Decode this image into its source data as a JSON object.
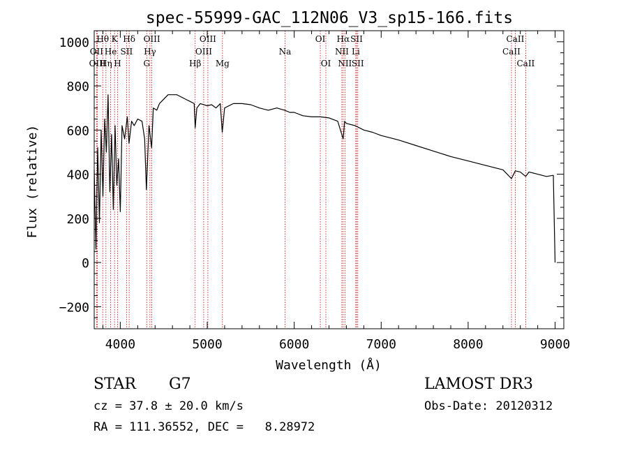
{
  "chart_data": {
    "type": "line",
    "title": "spec-55999-GAC_112N06_V3_sp15-166.fits",
    "xlabel": "Wavelength (Å)",
    "ylabel": "Flux (relative)",
    "xlim": [
      3700,
      9100
    ],
    "ylim": [
      -300,
      1050
    ],
    "xticks": [
      4000,
      5000,
      6000,
      7000,
      8000,
      9000
    ],
    "yticks": [
      -200,
      0,
      200,
      400,
      600,
      800,
      1000
    ],
    "x_tick_labels": [
      "4000",
      "5000",
      "6000",
      "7000",
      "8000",
      "9000"
    ],
    "y_tick_labels": [
      "−200",
      "0",
      "200",
      "400",
      "600",
      "800",
      "1000"
    ],
    "series": [
      {
        "name": "flux",
        "x": [
          3700,
          3720,
          3740,
          3760,
          3780,
          3800,
          3820,
          3840,
          3860,
          3880,
          3900,
          3920,
          3940,
          3960,
          3980,
          4000,
          4020,
          4050,
          4080,
          4100,
          4130,
          4160,
          4200,
          4250,
          4280,
          4300,
          4330,
          4360,
          4380,
          4420,
          4450,
          4500,
          4550,
          4600,
          4650,
          4700,
          4750,
          4800,
          4850,
          4861,
          4880,
          4920,
          5000,
          5050,
          5100,
          5150,
          5172,
          5200,
          5300,
          5400,
          5500,
          5600,
          5700,
          5800,
          5890,
          5950,
          6000,
          6100,
          6200,
          6300,
          6400,
          6500,
          6563,
          6580,
          6600,
          6700,
          6800,
          6900,
          7000,
          7200,
          7400,
          7600,
          7800,
          8000,
          8200,
          8400,
          8498,
          8542,
          8600,
          8662,
          8700,
          8800,
          8900,
          8980,
          9000,
          9000
        ],
        "y": [
          420,
          60,
          520,
          180,
          600,
          300,
          650,
          500,
          760,
          320,
          580,
          240,
          620,
          350,
          470,
          230,
          620,
          560,
          660,
          540,
          640,
          620,
          650,
          640,
          560,
          330,
          620,
          520,
          700,
          690,
          720,
          740,
          760,
          760,
          760,
          750,
          740,
          730,
          720,
          610,
          700,
          720,
          710,
          715,
          700,
          720,
          590,
          700,
          720,
          720,
          715,
          700,
          690,
          700,
          690,
          680,
          680,
          665,
          660,
          660,
          655,
          640,
          560,
          640,
          630,
          620,
          600,
          590,
          575,
          555,
          530,
          505,
          480,
          460,
          440,
          420,
          380,
          415,
          410,
          390,
          410,
          400,
          390,
          395,
          0,
          0
        ]
      }
    ],
    "line_markers": [
      {
        "label": "Hθ",
        "wave": 3798,
        "row": 0
      },
      {
        "label": "OII",
        "wave": 3727,
        "row": 1
      },
      {
        "label": "OIII",
        "wave": 3737,
        "row": 2
      },
      {
        "label": "Hη",
        "wave": 3835,
        "row": 2
      },
      {
        "label": "He",
        "wave": 3889,
        "row": 1
      },
      {
        "label": "K",
        "wave": 3934,
        "row": 0
      },
      {
        "label": "H",
        "wave": 3969,
        "row": 2
      },
      {
        "label": "SII",
        "wave": 4072,
        "row": 1
      },
      {
        "label": "Hδ",
        "wave": 4102,
        "row": 0
      },
      {
        "label": "OIII",
        "wave": 4363,
        "row": 0
      },
      {
        "label": "Hγ",
        "wave": 4341,
        "row": 1
      },
      {
        "label": "G",
        "wave": 4304,
        "row": 2
      },
      {
        "label": "Hβ",
        "wave": 4861,
        "row": 2
      },
      {
        "label": "OIII",
        "wave": 4959,
        "row": 1
      },
      {
        "label": "OIII",
        "wave": 5007,
        "row": 0
      },
      {
        "label": "Mg",
        "wave": 5175,
        "row": 2
      },
      {
        "label": "Na",
        "wave": 5894,
        "row": 1
      },
      {
        "label": "OI",
        "wave": 6300,
        "row": 0
      },
      {
        "label": "OI",
        "wave": 6364,
        "row": 2
      },
      {
        "label": "Hα",
        "wave": 6563,
        "row": 0
      },
      {
        "label": "NII",
        "wave": 6548,
        "row": 1
      },
      {
        "label": "NII",
        "wave": 6583,
        "row": 2
      },
      {
        "label": "SII",
        "wave": 6717,
        "row": 0
      },
      {
        "label": "Li",
        "wave": 6708,
        "row": 1
      },
      {
        "label": "SII",
        "wave": 6731,
        "row": 2
      },
      {
        "label": "CaII",
        "wave": 8542,
        "row": 0
      },
      {
        "label": "CaII",
        "wave": 8498,
        "row": 1
      },
      {
        "label": "CaII",
        "wave": 8662,
        "row": 2
      }
    ]
  },
  "info": {
    "object_class": "STAR",
    "subclass": "G7",
    "survey": "LAMOST DR3",
    "cz": "cz = 37.8 ± 20.0 km/s",
    "obs_date": "Obs-Date: 20120312",
    "coords": "RA = 111.36552, DEC =   8.28972"
  },
  "colors": {
    "spectrum": "#000000",
    "marker": "#cc0000",
    "axes": "#000000"
  }
}
